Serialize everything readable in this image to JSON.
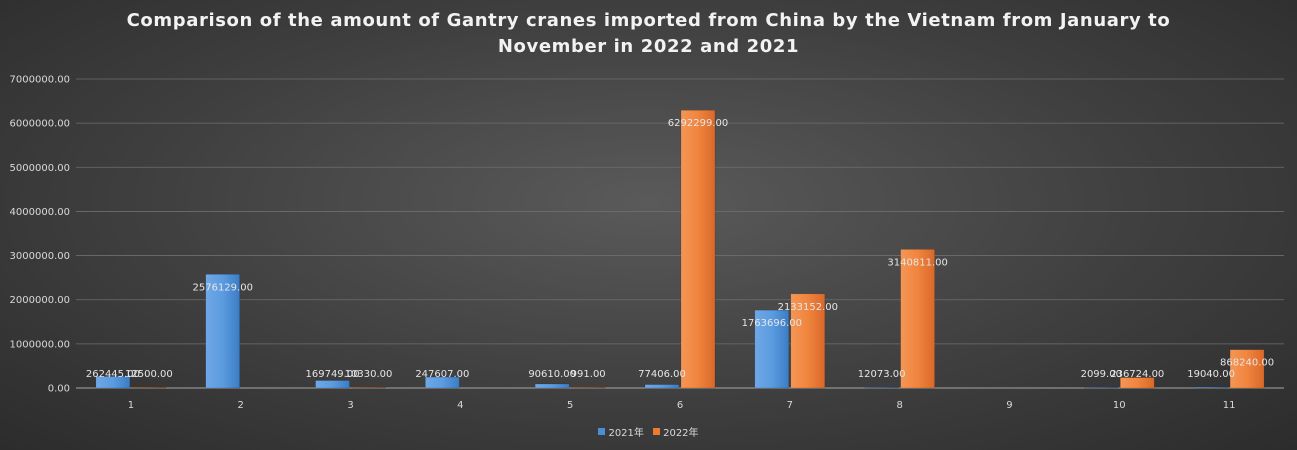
{
  "chart_data": {
    "type": "bar",
    "title_lines": [
      "Comparison of the amount of Gantry cranes imported from China by the Vietnam from January to",
      "November in 2022 and 2021"
    ],
    "categories": [
      "1",
      "2",
      "3",
      "4",
      "5",
      "6",
      "7",
      "8",
      "9",
      "10",
      "11"
    ],
    "series": [
      {
        "name": "2021年",
        "color": "#4a8fd6",
        "values": [
          262445.0,
          2576129.0,
          169749.0,
          247607.0,
          90610.0,
          77406.0,
          1763696.0,
          12073.0,
          null,
          2099.0,
          19040.0
        ],
        "labels": [
          "262445.00",
          "2576129.00",
          "169749.00",
          "247607.00",
          "90610.00",
          "77406.00",
          "1763696.00",
          "12073.00",
          "",
          "2099.00",
          "19040.00"
        ]
      },
      {
        "name": "2022年",
        "color": "#ee7a30",
        "values": [
          12500.0,
          null,
          10330.0,
          null,
          991.0,
          6292299.0,
          2133152.0,
          3140811.0,
          null,
          236724.0,
          868240.0
        ],
        "labels": [
          "12500.00",
          "",
          "10330.00",
          "",
          "991.00",
          "6292299.00",
          "2133152.00",
          "3140811.00",
          "",
          "236724.00",
          "868240.00"
        ]
      }
    ],
    "y_ticks": [
      0,
      1000000,
      2000000,
      3000000,
      4000000,
      5000000,
      6000000,
      7000000
    ],
    "y_tick_labels": [
      "0.00",
      "1000000.00",
      "2000000.00",
      "3000000.00",
      "4000000.00",
      "5000000.00",
      "6000000.00",
      "7000000.00"
    ],
    "ylim": [
      0,
      7000000
    ],
    "grid": true,
    "legend_position": "bottom"
  }
}
